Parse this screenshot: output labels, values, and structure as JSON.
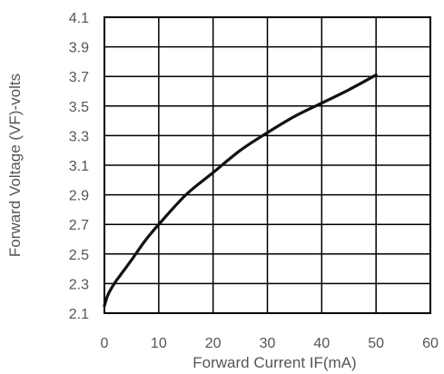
{
  "chart_data": {
    "type": "line",
    "title": "",
    "xlabel": "Forward Current IF(mA)",
    "ylabel": "Forward Voltage (VF)-volts",
    "xlim": [
      0,
      60
    ],
    "ylim": [
      2.1,
      4.1
    ],
    "x_ticks": [
      "0",
      "10",
      "20",
      "30",
      "40",
      "50",
      "60"
    ],
    "y_ticks": [
      "4.1",
      "3.9",
      "3.7",
      "3.5",
      "3.3",
      "3.1",
      "2.9",
      "2.7",
      "2.5",
      "2.3",
      "2.1"
    ],
    "grid": true,
    "legend": "none",
    "series": [
      {
        "color": "#111111",
        "x": [
          0,
          0.5,
          1,
          2,
          3,
          5,
          7.5,
          10,
          15,
          20,
          25,
          30,
          35,
          40,
          45,
          50
        ],
        "y": [
          2.15,
          2.21,
          2.25,
          2.31,
          2.36,
          2.46,
          2.59,
          2.7,
          2.9,
          3.05,
          3.2,
          3.32,
          3.43,
          3.52,
          3.61,
          3.71
        ]
      }
    ]
  }
}
